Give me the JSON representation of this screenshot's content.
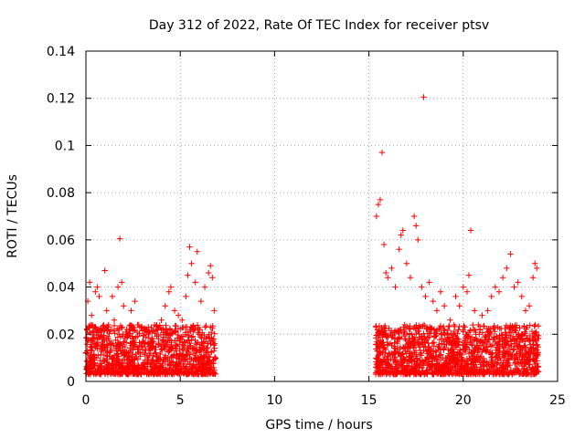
{
  "chart_data": {
    "type": "scatter",
    "title": "Day 312 of 2022, Rate Of TEC Index for receiver ptsv",
    "xlabel": "GPS time / hours",
    "ylabel": "ROTI / TECUs",
    "xlim": [
      0,
      25
    ],
    "ylim": [
      0,
      0.14
    ],
    "x_ticks": [
      0,
      5,
      10,
      15,
      20,
      25
    ],
    "x_tick_labels": [
      "0",
      "5",
      "10",
      "15",
      "20",
      "25"
    ],
    "y_ticks": [
      0,
      0.02,
      0.04,
      0.06,
      0.08,
      0.1,
      0.12,
      0.14
    ],
    "y_tick_labels": [
      "0",
      "0.02",
      "0.04",
      "0.06",
      "0.08",
      "0.1",
      "0.12",
      "0.14"
    ],
    "grid": true,
    "marker": "+",
    "marker_color": "#ff0000",
    "series": [
      {
        "points": [
          [
            0.0,
            0.012
          ],
          [
            0.1,
            0.034
          ],
          [
            0.2,
            0.042
          ],
          [
            0.3,
            0.028
          ],
          [
            0.4,
            0.018
          ],
          [
            0.5,
            0.038
          ],
          [
            0.6,
            0.04
          ],
          [
            0.7,
            0.036
          ],
          [
            0.8,
            0.022
          ],
          [
            1.0,
            0.047
          ],
          [
            1.1,
            0.03
          ],
          [
            1.2,
            0.024
          ],
          [
            1.4,
            0.036
          ],
          [
            1.5,
            0.026
          ],
          [
            1.7,
            0.04
          ],
          [
            1.8,
            0.0605
          ],
          [
            1.9,
            0.042
          ],
          [
            2.0,
            0.032
          ],
          [
            2.2,
            0.02
          ],
          [
            2.4,
            0.03
          ],
          [
            2.6,
            0.034
          ],
          [
            2.8,
            0.024
          ],
          [
            3.0,
            0.016
          ],
          [
            3.2,
            0.02
          ],
          [
            3.5,
            0.018
          ],
          [
            3.8,
            0.022
          ],
          [
            4.0,
            0.026
          ],
          [
            4.2,
            0.032
          ],
          [
            4.4,
            0.038
          ],
          [
            4.5,
            0.04
          ],
          [
            4.7,
            0.03
          ],
          [
            4.9,
            0.028
          ],
          [
            5.1,
            0.026
          ],
          [
            5.3,
            0.036
          ],
          [
            5.4,
            0.045
          ],
          [
            5.5,
            0.057
          ],
          [
            5.6,
            0.05
          ],
          [
            5.8,
            0.042
          ],
          [
            5.9,
            0.055
          ],
          [
            6.1,
            0.034
          ],
          [
            6.3,
            0.04
          ],
          [
            6.5,
            0.046
          ],
          [
            6.6,
            0.049
          ],
          [
            6.7,
            0.044
          ],
          [
            6.8,
            0.03
          ],
          [
            15.4,
            0.07
          ],
          [
            15.5,
            0.075
          ],
          [
            15.6,
            0.077
          ],
          [
            15.7,
            0.097
          ],
          [
            15.8,
            0.058
          ],
          [
            15.9,
            0.046
          ],
          [
            16.0,
            0.044
          ],
          [
            16.2,
            0.048
          ],
          [
            16.4,
            0.04
          ],
          [
            16.6,
            0.056
          ],
          [
            16.7,
            0.062
          ],
          [
            16.8,
            0.064
          ],
          [
            17.0,
            0.05
          ],
          [
            17.2,
            0.044
          ],
          [
            17.4,
            0.07
          ],
          [
            17.5,
            0.066
          ],
          [
            17.6,
            0.06
          ],
          [
            17.8,
            0.04
          ],
          [
            17.9,
            0.1205
          ],
          [
            18.0,
            0.036
          ],
          [
            18.2,
            0.042
          ],
          [
            18.4,
            0.034
          ],
          [
            18.6,
            0.03
          ],
          [
            18.8,
            0.038
          ],
          [
            19.0,
            0.032
          ],
          [
            19.3,
            0.026
          ],
          [
            19.6,
            0.036
          ],
          [
            19.8,
            0.032
          ],
          [
            20.0,
            0.04
          ],
          [
            20.2,
            0.038
          ],
          [
            20.3,
            0.045
          ],
          [
            20.4,
            0.064
          ],
          [
            20.6,
            0.03
          ],
          [
            20.8,
            0.024
          ],
          [
            21.0,
            0.028
          ],
          [
            21.3,
            0.03
          ],
          [
            21.5,
            0.036
          ],
          [
            21.7,
            0.04
          ],
          [
            21.9,
            0.038
          ],
          [
            22.1,
            0.044
          ],
          [
            22.3,
            0.048
          ],
          [
            22.5,
            0.054
          ],
          [
            22.7,
            0.04
          ],
          [
            22.9,
            0.042
          ],
          [
            23.1,
            0.036
          ],
          [
            23.3,
            0.03
          ],
          [
            23.5,
            0.032
          ],
          [
            23.7,
            0.044
          ],
          [
            23.8,
            0.05
          ],
          [
            23.9,
            0.048
          ]
        ]
      }
    ],
    "dense_band": {
      "segments": [
        [
          0.0,
          6.9
        ],
        [
          15.35,
          24.0
        ]
      ],
      "ymin": 0.003,
      "ymax": 0.024
    }
  }
}
